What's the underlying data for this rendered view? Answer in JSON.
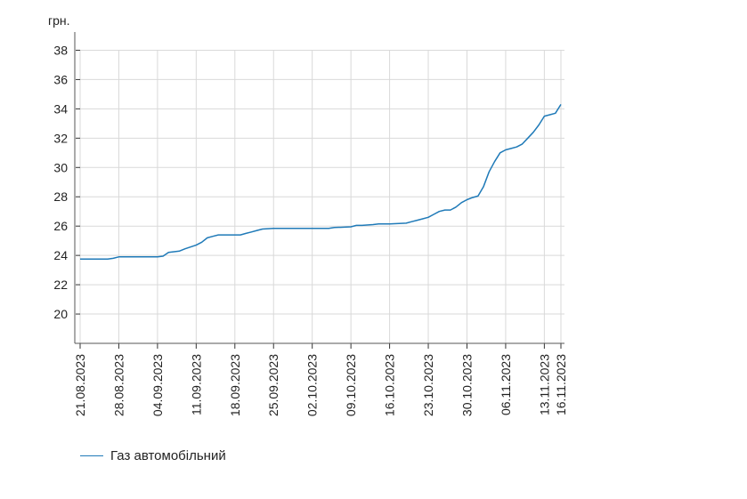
{
  "chart_data": {
    "type": "line",
    "ylabel": "грн.",
    "ylim": [
      18,
      39
    ],
    "yticks": [
      20,
      22,
      24,
      26,
      28,
      30,
      32,
      34,
      36,
      38
    ],
    "grid": true,
    "legend_position": "bottom-left",
    "xticks": [
      {
        "label": "21.08.2023",
        "day": 0
      },
      {
        "label": "28.08.2023",
        "day": 7
      },
      {
        "label": "04.09.2023",
        "day": 14
      },
      {
        "label": "11.09.2023",
        "day": 21
      },
      {
        "label": "18.09.2023",
        "day": 28
      },
      {
        "label": "25.09.2023",
        "day": 35
      },
      {
        "label": "02.10.2023",
        "day": 42
      },
      {
        "label": "09.10.2023",
        "day": 49
      },
      {
        "label": "16.10.2023",
        "day": 56
      },
      {
        "label": "23.10.2023",
        "day": 63
      },
      {
        "label": "30.10.2023",
        "day": 70
      },
      {
        "label": "06.11.2023",
        "day": 77
      },
      {
        "label": "13.11.2023",
        "day": 84
      },
      {
        "label": "16.11.2023",
        "day": 87
      }
    ],
    "series": [
      {
        "name": "Газ автомобільний",
        "color": "#1f7ab8",
        "points": [
          [
            "21.08.2023",
            23.75
          ],
          [
            "25.08.2023",
            23.75
          ],
          [
            "26.08.2023",
            23.75
          ],
          [
            "27.08.2023",
            23.8
          ],
          [
            "28.08.2023",
            23.9
          ],
          [
            "30.08.2023",
            23.9
          ],
          [
            "04.09.2023",
            23.9
          ],
          [
            "05.09.2023",
            23.95
          ],
          [
            "06.09.2023",
            24.2
          ],
          [
            "07.09.2023",
            24.25
          ],
          [
            "08.09.2023",
            24.3
          ],
          [
            "09.09.2023",
            24.45
          ],
          [
            "11.09.2023",
            24.7
          ],
          [
            "12.09.2023",
            24.9
          ],
          [
            "13.09.2023",
            25.2
          ],
          [
            "14.09.2023",
            25.3
          ],
          [
            "15.09.2023",
            25.4
          ],
          [
            "17.09.2023",
            25.4
          ],
          [
            "18.09.2023",
            25.4
          ],
          [
            "19.09.2023",
            25.4
          ],
          [
            "20.09.2023",
            25.5
          ],
          [
            "21.09.2023",
            25.6
          ],
          [
            "22.09.2023",
            25.7
          ],
          [
            "23.09.2023",
            25.8
          ],
          [
            "25.09.2023",
            25.85
          ],
          [
            "02.10.2023",
            25.85
          ],
          [
            "05.10.2023",
            25.85
          ],
          [
            "06.10.2023",
            25.9
          ],
          [
            "09.10.2023",
            25.95
          ],
          [
            "10.10.2023",
            26.05
          ],
          [
            "11.10.2023",
            26.05
          ],
          [
            "13.10.2023",
            26.1
          ],
          [
            "14.10.2023",
            26.15
          ],
          [
            "16.10.2023",
            26.15
          ],
          [
            "19.10.2023",
            26.2
          ],
          [
            "20.10.2023",
            26.3
          ],
          [
            "21.10.2023",
            26.4
          ],
          [
            "22.10.2023",
            26.5
          ],
          [
            "23.10.2023",
            26.6
          ],
          [
            "24.10.2023",
            26.8
          ],
          [
            "25.10.2023",
            27.0
          ],
          [
            "26.10.2023",
            27.1
          ],
          [
            "27.10.2023",
            27.1
          ],
          [
            "28.10.2023",
            27.3
          ],
          [
            "29.10.2023",
            27.6
          ],
          [
            "30.10.2023",
            27.8
          ],
          [
            "31.10.2023",
            27.95
          ],
          [
            "01.11.2023",
            28.05
          ],
          [
            "02.11.2023",
            28.7
          ],
          [
            "03.11.2023",
            29.7
          ],
          [
            "04.11.2023",
            30.4
          ],
          [
            "05.11.2023",
            31.0
          ],
          [
            "06.11.2023",
            31.2
          ],
          [
            "07.11.2023",
            31.3
          ],
          [
            "08.11.2023",
            31.4
          ],
          [
            "09.11.2023",
            31.6
          ],
          [
            "10.11.2023",
            32.0
          ],
          [
            "11.11.2023",
            32.4
          ],
          [
            "12.11.2023",
            32.9
          ],
          [
            "13.11.2023",
            33.5
          ],
          [
            "14.11.2023",
            33.6
          ],
          [
            "15.11.2023",
            33.7
          ],
          [
            "16.11.2023",
            34.3
          ]
        ]
      }
    ]
  }
}
